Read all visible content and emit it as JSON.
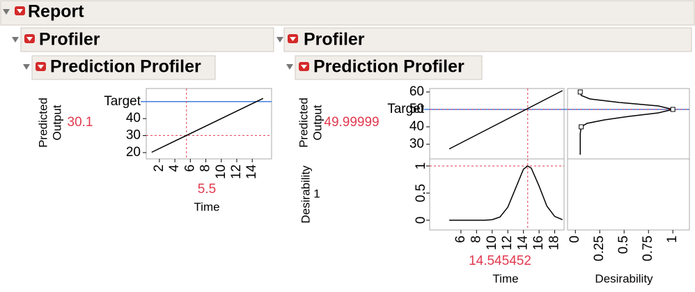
{
  "report": {
    "title": "Report"
  },
  "panels": [
    {
      "title": "Profiler",
      "subtitle": "Prediction Profiler"
    },
    {
      "title": "Profiler",
      "subtitle": "Prediction Profiler"
    }
  ],
  "chart_data": [
    {
      "type": "line",
      "y_label": [
        "Predicted",
        "Output"
      ],
      "x_label": "Time",
      "x": [
        1,
        15.4
      ],
      "values": [
        20.2,
        51.9
      ],
      "color": "#000000",
      "xlim": [
        0.3,
        16.5
      ],
      "ylim": [
        16.3,
        57.7
      ],
      "xticks": [
        2,
        4,
        6,
        8,
        10,
        12,
        14
      ],
      "yticks": [
        20,
        30,
        40
      ],
      "current_x": 5.5,
      "current_y": 30.1,
      "target": {
        "label": "Target",
        "value": 50
      }
    },
    {
      "type": "line",
      "y_label": [
        "Predicted",
        "Output"
      ],
      "x": [
        4.5,
        19
      ],
      "values": [
        27.3,
        60.8
      ],
      "color": "#000000",
      "xlim": [
        2,
        19.2
      ],
      "ylim": [
        21.6,
        62
      ],
      "yticks": [
        30,
        40,
        50,
        60
      ],
      "current_y": 49.99999,
      "target": {
        "label": "Target",
        "value": 50
      }
    },
    {
      "type": "line",
      "x_label": "Desirability",
      "x": [
        0.05,
        0.05,
        0.05,
        0.06,
        0.12,
        0.3,
        0.55,
        0.85,
        1,
        0.85,
        0.45,
        0.15,
        0.06,
        0.05
      ],
      "values": [
        24,
        30,
        36,
        40,
        42,
        44,
        46,
        48,
        50,
        52,
        54,
        56,
        58,
        60
      ],
      "color": "#000000",
      "xlim": [
        -0.08,
        1.17
      ],
      "ylim": [
        21.6,
        62
      ],
      "xticks": [
        0,
        0.25,
        0.5,
        0.75,
        1
      ]
    },
    {
      "type": "line",
      "y_label": [
        "Desirability"
      ],
      "x_label": "Time",
      "x": [
        4.5,
        6,
        8,
        9,
        10,
        11,
        12,
        13,
        14,
        14.545452,
        15,
        16,
        17,
        18,
        19
      ],
      "values": [
        0,
        0,
        0,
        0,
        0.01,
        0.06,
        0.24,
        0.59,
        0.94,
        1,
        0.96,
        0.63,
        0.26,
        0.07,
        0.01
      ],
      "color": "#000000",
      "xlim": [
        2,
        19.2
      ],
      "ylim": [
        -0.18,
        1.13
      ],
      "xticks": [
        6,
        8,
        10,
        12,
        14,
        16,
        18
      ],
      "yticks": [
        0,
        0.5,
        1
      ],
      "current_x": 14.545452,
      "current_y": 1
    }
  ]
}
